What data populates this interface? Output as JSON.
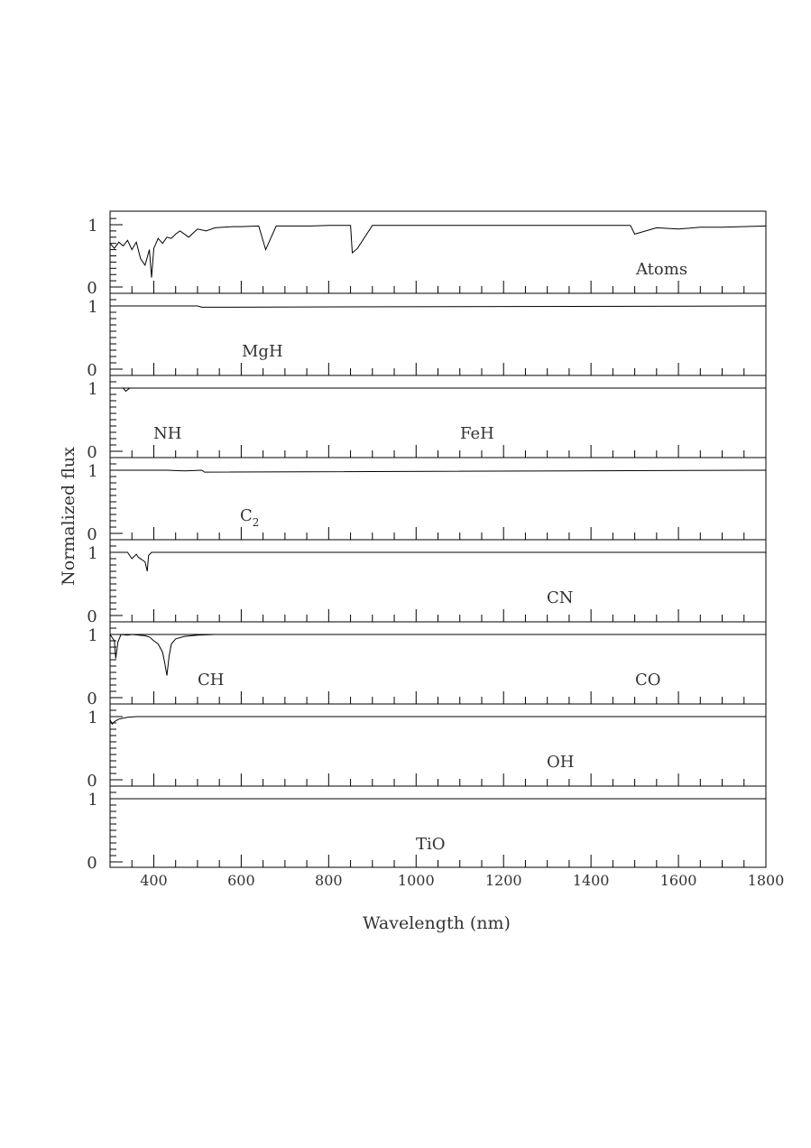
{
  "chart_data": {
    "type": "line",
    "title": "",
    "xlabel": "Wavelength (nm)",
    "ylabel": "Normalized flux",
    "xlim": [
      300,
      1800
    ],
    "x_tick_labels": [
      400,
      600,
      800,
      1000,
      1200,
      1400,
      1600,
      1800
    ],
    "ylim": [
      -0.1,
      1.2
    ],
    "y_tick_labels": [
      0,
      1
    ],
    "grid": false,
    "legend": "none",
    "panels": [
      {
        "label": "Atoms",
        "series": {
          "x": [
            300,
            310,
            320,
            330,
            340,
            350,
            360,
            370,
            380,
            390,
            395,
            400,
            410,
            420,
            430,
            440,
            450,
            460,
            480,
            500,
            520,
            540,
            560,
            580,
            600,
            640,
            656,
            680,
            720,
            760,
            800,
            850,
            854,
            866,
            900,
            950,
            1000,
            1100,
            1200,
            1300,
            1340,
            1490,
            1500,
            1550,
            1600,
            1650,
            1700,
            1800
          ],
          "y": [
            0.7,
            0.62,
            0.72,
            0.66,
            0.75,
            0.6,
            0.72,
            0.45,
            0.35,
            0.6,
            0.15,
            0.62,
            0.78,
            0.7,
            0.8,
            0.78,
            0.85,
            0.9,
            0.8,
            0.93,
            0.9,
            0.95,
            0.96,
            0.97,
            0.97,
            0.98,
            0.6,
            0.98,
            0.98,
            0.98,
            0.99,
            0.99,
            0.55,
            0.62,
            0.99,
            0.99,
            0.99,
            0.99,
            0.99,
            0.99,
            0.99,
            0.99,
            0.85,
            0.95,
            0.93,
            0.96,
            0.96,
            0.98
          ]
        }
      },
      {
        "label": "MgH",
        "series": {
          "x": [
            300,
            500,
            510,
            1800
          ],
          "y": [
            1.0,
            1.0,
            0.98,
            1.0
          ]
        }
      },
      {
        "label": "NH",
        "series": {
          "x": [
            300,
            330,
            336,
            345,
            1800
          ],
          "y": [
            1.0,
            1.0,
            0.95,
            1.0,
            1.0
          ]
        }
      },
      {
        "label": "FeH",
        "series": {
          "x": [
            300,
            1800
          ],
          "y": [
            1.0,
            1.0
          ]
        }
      },
      {
        "label": "C2",
        "series": {
          "x": [
            300,
            430,
            470,
            510,
            516,
            1800
          ],
          "y": [
            1.0,
            1.0,
            0.99,
            1.0,
            0.97,
            1.0
          ]
        }
      },
      {
        "label": "CN",
        "series": {
          "x": [
            300,
            340,
            350,
            360,
            365,
            380,
            385,
            388,
            395,
            420,
            1800
          ],
          "y": [
            1.0,
            1.0,
            0.9,
            0.97,
            0.92,
            0.85,
            0.7,
            0.95,
            1.0,
            1.0,
            1.0
          ]
        }
      },
      {
        "label": "CH",
        "series": {
          "x": [
            300,
            310,
            313,
            318,
            325,
            340,
            350,
            380,
            390,
            400,
            410,
            420,
            425,
            430,
            435,
            440,
            450,
            470,
            500,
            540,
            1800
          ],
          "y": [
            1.0,
            0.9,
            0.62,
            0.88,
            1.0,
            0.99,
            1.0,
            0.98,
            0.96,
            0.9,
            0.85,
            0.72,
            0.55,
            0.35,
            0.65,
            0.85,
            0.93,
            0.97,
            0.99,
            1.0,
            1.0
          ]
        }
      },
      {
        "label": "CO",
        "series": {
          "x": [
            300,
            1800
          ],
          "y": [
            1.0,
            1.0
          ]
        }
      },
      {
        "label": "OH",
        "series": {
          "x": [
            300,
            305,
            310,
            320,
            340,
            360,
            1800
          ],
          "y": [
            0.95,
            0.88,
            0.92,
            0.96,
            0.99,
            1.0,
            1.0
          ]
        }
      },
      {
        "label": "TiO",
        "series": {
          "x": [
            300,
            1800
          ],
          "y": [
            1.0,
            1.0
          ]
        }
      }
    ]
  }
}
